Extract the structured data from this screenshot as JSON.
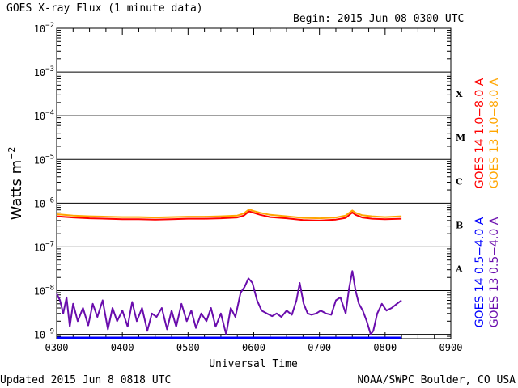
{
  "chart_data": {
    "type": "line",
    "title": "GOES X-ray Flux (1 minute data)",
    "begin_label": "Begin: 2015 Jun 08 0300 UTC",
    "xlabel": "Universal Time",
    "ylabel_main": "Watts m",
    "ylabel_sup": "−2",
    "x_ticks": [
      "0300",
      "0400",
      "0500",
      "0600",
      "0700",
      "0800",
      "0900"
    ],
    "y_ticks": [
      {
        "exp": -2,
        "base": "10",
        "sup": "−2"
      },
      {
        "exp": -3,
        "base": "10",
        "sup": "−3"
      },
      {
        "exp": -4,
        "base": "10",
        "sup": "−4"
      },
      {
        "exp": -5,
        "base": "10",
        "sup": "−5"
      },
      {
        "exp": -6,
        "base": "10",
        "sup": "−6"
      },
      {
        "exp": -7,
        "base": "10",
        "sup": "−7"
      },
      {
        "exp": -8,
        "base": "10",
        "sup": "−8"
      },
      {
        "exp": -9,
        "base": "10",
        "sup": "−9"
      }
    ],
    "xlim": [
      3,
      9
    ],
    "ylim_exp": [
      -9.1,
      -2
    ],
    "y_scale": "log",
    "grid": "horizontal lines at decades",
    "flare_classes": [
      {
        "label": "X",
        "exp": -3.5
      },
      {
        "label": "M",
        "exp": -4.5
      },
      {
        "label": "C",
        "exp": -5.5
      },
      {
        "label": "B",
        "exp": -6.5
      },
      {
        "label": "A",
        "exp": -7.5
      }
    ],
    "series": [
      {
        "name": "GOES 13 1.0−8.0 A",
        "color": "#ffa500",
        "x": [
          3.0,
          3.25,
          3.5,
          3.75,
          4.0,
          4.25,
          4.5,
          4.75,
          5.0,
          5.25,
          5.5,
          5.75,
          5.85,
          5.93,
          6.0,
          6.1,
          6.25,
          6.5,
          6.75,
          7.0,
          7.25,
          7.4,
          7.5,
          7.55,
          7.65,
          7.8,
          8.0,
          8.25
        ],
        "y": [
          5.6e-07,
          5.2e-07,
          5e-07,
          4.9e-07,
          4.8e-07,
          4.8e-07,
          4.7e-07,
          4.8e-07,
          4.9e-07,
          4.9e-07,
          5e-07,
          5.2e-07,
          5.8e-07,
          7.2e-07,
          6.6e-07,
          6e-07,
          5.4e-07,
          5e-07,
          4.6e-07,
          4.5e-07,
          4.7e-07,
          5.2e-07,
          6.8e-07,
          6e-07,
          5.3e-07,
          5e-07,
          4.8e-07,
          5e-07
        ]
      },
      {
        "name": "GOES 14 1.0−8.0 A",
        "color": "#ff0000",
        "x": [
          3.0,
          3.25,
          3.5,
          3.75,
          4.0,
          4.25,
          4.5,
          4.75,
          5.0,
          5.25,
          5.5,
          5.75,
          5.85,
          5.93,
          6.0,
          6.1,
          6.25,
          6.5,
          6.75,
          7.0,
          7.25,
          7.4,
          7.5,
          7.55,
          7.65,
          7.8,
          8.0,
          8.25
        ],
        "y": [
          5e-07,
          4.7e-07,
          4.5e-07,
          4.4e-07,
          4.3e-07,
          4.3e-07,
          4.2e-07,
          4.3e-07,
          4.4e-07,
          4.4e-07,
          4.5e-07,
          4.7e-07,
          5.2e-07,
          6.5e-07,
          6e-07,
          5.4e-07,
          4.8e-07,
          4.5e-07,
          4.1e-07,
          4e-07,
          4.2e-07,
          4.6e-07,
          6.1e-07,
          5.4e-07,
          4.7e-07,
          4.4e-07,
          4.3e-07,
          4.4e-07
        ]
      },
      {
        "name": "GOES 13 0.5−4.0 A",
        "color": "#6a0dad",
        "x": [
          3.0,
          3.05,
          3.1,
          3.15,
          3.2,
          3.25,
          3.32,
          3.4,
          3.48,
          3.55,
          3.62,
          3.7,
          3.78,
          3.85,
          3.92,
          4.0,
          4.08,
          4.15,
          4.22,
          4.3,
          4.38,
          4.45,
          4.52,
          4.6,
          4.68,
          4.75,
          4.82,
          4.9,
          4.98,
          5.05,
          5.12,
          5.2,
          5.28,
          5.35,
          5.42,
          5.5,
          5.58,
          5.65,
          5.72,
          5.8,
          5.86,
          5.92,
          5.98,
          6.05,
          6.12,
          6.2,
          6.28,
          6.35,
          6.42,
          6.5,
          6.58,
          6.65,
          6.7,
          6.76,
          6.82,
          6.88,
          6.95,
          7.02,
          7.1,
          7.18,
          7.25,
          7.32,
          7.4,
          7.45,
          7.5,
          7.55,
          7.6,
          7.66,
          7.72,
          7.78,
          7.82,
          7.88,
          7.95,
          8.02,
          8.1,
          8.18,
          8.25
        ],
        "y": [
          8.5e-09,
          6e-09,
          3e-09,
          7e-09,
          1.5e-09,
          5e-09,
          2e-09,
          4e-09,
          1.6e-09,
          5e-09,
          2.5e-09,
          6e-09,
          1.3e-09,
          4e-09,
          2e-09,
          3.5e-09,
          1.5e-09,
          5.5e-09,
          2e-09,
          4e-09,
          1.2e-09,
          3e-09,
          2.5e-09,
          4e-09,
          1.3e-09,
          3.5e-09,
          1.5e-09,
          5e-09,
          2e-09,
          3.5e-09,
          1.4e-09,
          3e-09,
          2e-09,
          4e-09,
          1.5e-09,
          3e-09,
          1e-09,
          4e-09,
          2.5e-09,
          9e-09,
          1.2e-08,
          1.9e-08,
          1.5e-08,
          6e-09,
          3.5e-09,
          3e-09,
          2.6e-09,
          3e-09,
          2.5e-09,
          3.5e-09,
          2.8e-09,
          6e-09,
          1.5e-08,
          5e-09,
          3e-09,
          2.8e-09,
          3e-09,
          3.5e-09,
          3e-09,
          2.8e-09,
          6e-09,
          7e-09,
          3e-09,
          1.1e-08,
          2.8e-08,
          1e-08,
          5e-09,
          3.5e-09,
          2e-09,
          1e-09,
          1.2e-09,
          3e-09,
          5e-09,
          3.5e-09,
          4e-09,
          5e-09,
          6e-09
        ]
      },
      {
        "name": "GOES 14 0.5−4.0 A",
        "color": "#0000ff",
        "x": [
          3.0,
          8.25
        ],
        "y": [
          7.5e-10,
          7.5e-10
        ]
      }
    ],
    "legend_placement": "right, vertical"
  },
  "footer": {
    "updated": "Updated 2015 Jun  8 0818 UTC",
    "credit": "NOAA/SWPC Boulder, CO USA"
  }
}
